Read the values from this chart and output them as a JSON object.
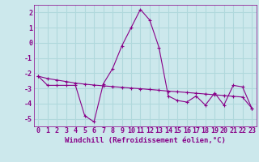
{
  "xlabel": "Windchill (Refroidissement éolien,°C)",
  "background_color": "#cce8ec",
  "grid_color": "#b0d8dc",
  "line_color": "#880088",
  "hours": [
    0,
    1,
    2,
    3,
    4,
    5,
    6,
    7,
    8,
    9,
    10,
    11,
    12,
    13,
    14,
    15,
    16,
    17,
    18,
    19,
    20,
    21,
    22,
    23
  ],
  "windchill": [
    -2.2,
    -2.8,
    -2.8,
    -2.8,
    -2.8,
    -4.8,
    -5.2,
    -2.7,
    -1.7,
    -0.2,
    1.0,
    2.2,
    1.5,
    -0.3,
    -3.5,
    -3.8,
    -3.9,
    -3.5,
    -4.1,
    -3.3,
    -4.1,
    -2.8,
    -2.9,
    -4.3
  ],
  "trend": [
    -2.2,
    -2.35,
    -2.45,
    -2.55,
    -2.65,
    -2.72,
    -2.78,
    -2.83,
    -2.88,
    -2.93,
    -2.98,
    -3.02,
    -3.07,
    -3.12,
    -3.18,
    -3.22,
    -3.27,
    -3.32,
    -3.37,
    -3.42,
    -3.47,
    -3.52,
    -3.57,
    -4.3
  ],
  "ylim": [
    -5.5,
    2.5
  ],
  "yticks": [
    -5,
    -4,
    -3,
    -2,
    -1,
    0,
    1,
    2
  ],
  "xticks": [
    0,
    1,
    2,
    3,
    4,
    5,
    6,
    7,
    8,
    9,
    10,
    11,
    12,
    13,
    14,
    15,
    16,
    17,
    18,
    19,
    20,
    21,
    22,
    23
  ],
  "xlabel_fontsize": 6.5,
  "tick_fontsize": 6.0
}
